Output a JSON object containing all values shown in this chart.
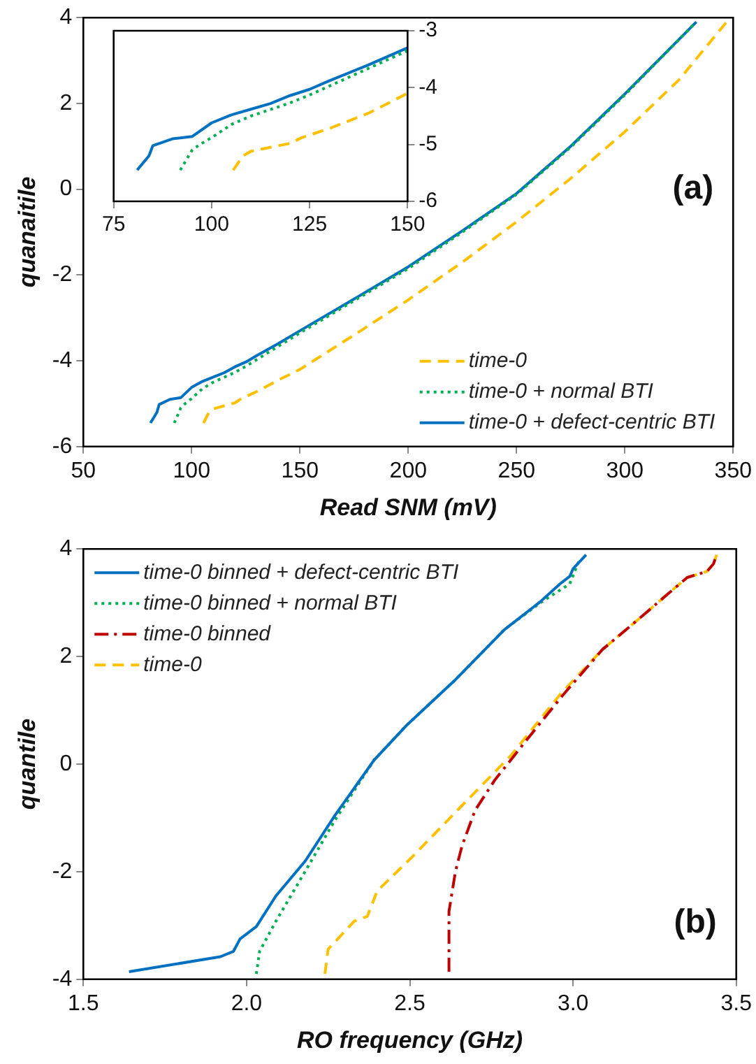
{
  "chart_data": [
    {
      "type": "line",
      "xlabel": "Read SNM (mV)",
      "ylabel": "quanaitile",
      "xlim": [
        50,
        350
      ],
      "xticks": [
        50,
        100,
        150,
        200,
        250,
        300,
        350
      ],
      "ylim": [
        -6,
        4
      ],
      "yticks": [
        -6,
        -4,
        -2,
        0,
        2,
        4
      ],
      "grid": false,
      "legend": "bottom right",
      "marker": "none",
      "annotations": [
        "(a)"
      ],
      "series": [
        {
          "name": "time-0",
          "color": "#ffc000",
          "line_style": "dashed",
          "x": [
            105.5,
            108,
            110,
            115,
            120,
            123,
            130,
            140,
            150,
            175,
            200,
            225,
            250,
            275,
            300,
            325,
            347
          ],
          "values": [
            -5.45,
            -5.2,
            -5.12,
            -5.05,
            -4.98,
            -4.88,
            -4.72,
            -4.45,
            -4.2,
            -3.4,
            -2.58,
            -1.7,
            -0.76,
            0.25,
            1.34,
            2.55,
            3.9
          ]
        },
        {
          "name": "time-0 + normal BTI",
          "color": "#00b050",
          "line_style": "dotted",
          "x": [
            92,
            95,
            97,
            100,
            105,
            110,
            120,
            125,
            150,
            175,
            200,
            225,
            250,
            275,
            300,
            332
          ],
          "values": [
            -5.45,
            -5.1,
            -5.0,
            -4.88,
            -4.65,
            -4.5,
            -4.27,
            -4.13,
            -3.35,
            -2.6,
            -1.85,
            -1.0,
            -0.12,
            0.98,
            2.2,
            3.85
          ]
        },
        {
          "name": "time-0 + defect-centric BTI",
          "color": "#0070c0",
          "line_style": "solid",
          "x": [
            81,
            84,
            85,
            90,
            95,
            100,
            105,
            110,
            115,
            120,
            125,
            130,
            140,
            150,
            175,
            200,
            225,
            250,
            275,
            300,
            333
          ],
          "values": [
            -5.45,
            -5.2,
            -5.02,
            -4.9,
            -4.86,
            -4.62,
            -4.48,
            -4.38,
            -4.28,
            -4.14,
            -4.03,
            -3.88,
            -3.6,
            -3.3,
            -2.56,
            -1.81,
            -0.97,
            -0.1,
            1.0,
            2.22,
            3.9
          ]
        }
      ]
    },
    {
      "type": "line",
      "xlim": [
        75,
        150
      ],
      "xticks": [
        75,
        100,
        125,
        150
      ],
      "ylim": [
        -6,
        -3
      ],
      "yticks": [
        -6,
        -5,
        -4,
        -3
      ],
      "grid": false,
      "legend": false,
      "marker": "none",
      "series": [
        {
          "color": "#ffc000",
          "line_style": "dashed",
          "x": [
            105.5,
            108,
            110,
            115,
            120,
            123,
            130,
            140,
            150
          ],
          "values": [
            -5.45,
            -5.2,
            -5.12,
            -5.05,
            -4.98,
            -4.88,
            -4.72,
            -4.45,
            -4.1
          ]
        },
        {
          "color": "#00b050",
          "line_style": "dotted",
          "x": [
            92,
            95,
            97,
            100,
            105,
            110,
            120,
            125,
            150
          ],
          "values": [
            -5.45,
            -5.1,
            -5.0,
            -4.88,
            -4.65,
            -4.5,
            -4.27,
            -4.13,
            -3.35
          ]
        },
        {
          "color": "#0070c0",
          "line_style": "solid",
          "x": [
            81,
            84,
            85,
            90,
            95,
            100,
            105,
            110,
            115,
            120,
            125,
            130,
            140,
            150
          ],
          "values": [
            -5.45,
            -5.2,
            -5.02,
            -4.9,
            -4.86,
            -4.62,
            -4.48,
            -4.38,
            -4.28,
            -4.14,
            -4.03,
            -3.88,
            -3.6,
            -3.3
          ]
        }
      ]
    },
    {
      "type": "line",
      "xlabel": "RO frequency (GHz)",
      "ylabel": "quantile",
      "xlim": [
        1.5,
        3.5
      ],
      "xticks": [
        {
          "value": 1.5,
          "label": "1.5"
        },
        {
          "value": 2,
          "label": "2.0"
        },
        {
          "value": 2.5,
          "label": "2.5"
        },
        {
          "value": 3,
          "label": "3.0"
        },
        {
          "value": 3.5,
          "label": "3.5"
        }
      ],
      "ylim": [
        -4,
        4
      ],
      "yticks": [
        -4,
        -2,
        0,
        2,
        4
      ],
      "grid": false,
      "legend": "top left",
      "marker": "none",
      "annotations": [
        "(b)"
      ],
      "series": [
        {
          "name": "time-0 binned + defect-centric BTI",
          "color": "#0070c0",
          "line_style": "solid",
          "x": [
            1.64,
            1.92,
            1.96,
            1.98,
            2.03,
            2.09,
            2.18,
            2.27,
            2.39,
            2.49,
            2.64,
            2.79,
            2.9,
            2.96,
            2.99,
            3.0,
            3.04
          ],
          "values": [
            -3.86,
            -3.58,
            -3.48,
            -3.25,
            -3.02,
            -2.45,
            -1.8,
            -0.96,
            0.07,
            0.72,
            1.57,
            2.5,
            3.02,
            3.35,
            3.49,
            3.63,
            3.89
          ]
        },
        {
          "name": "time-0 binned + normal BTI",
          "color": "#00b050",
          "line_style": "dotted",
          "x": [
            2.03,
            2.04,
            2.09,
            2.18,
            2.27,
            2.39,
            2.49,
            2.64,
            2.79,
            2.9,
            2.99,
            3.02
          ],
          "values": [
            -3.9,
            -3.48,
            -2.92,
            -1.99,
            -1.05,
            0.07,
            0.72,
            1.57,
            2.5,
            3.0,
            3.35,
            3.81
          ]
        },
        {
          "name": "time-0 binned",
          "color": "#c00000",
          "line_style": "dashdot",
          "x": [
            2.62,
            2.62,
            2.64,
            2.66,
            2.7,
            2.76,
            2.87,
            2.97,
            3.09,
            3.2,
            3.29,
            3.35,
            3.41,
            3.43,
            3.44
          ],
          "values": [
            -3.86,
            -2.74,
            -1.99,
            -1.52,
            -0.86,
            -0.3,
            0.54,
            1.29,
            2.13,
            2.69,
            3.16,
            3.47,
            3.58,
            3.72,
            3.89
          ]
        },
        {
          "name": "time-0",
          "color": "#ffc000",
          "line_style": "dashed",
          "x": [
            2.24,
            2.25,
            2.33,
            2.37,
            2.4,
            2.51,
            2.66,
            2.81,
            2.96,
            3.09,
            3.2,
            3.29,
            3.35,
            3.41,
            3.43,
            3.44
          ],
          "values": [
            -3.9,
            -3.44,
            -2.92,
            -2.83,
            -2.36,
            -1.71,
            -0.77,
            0.16,
            1.29,
            2.13,
            2.69,
            3.16,
            3.47,
            3.58,
            3.72,
            3.89
          ]
        }
      ]
    }
  ]
}
